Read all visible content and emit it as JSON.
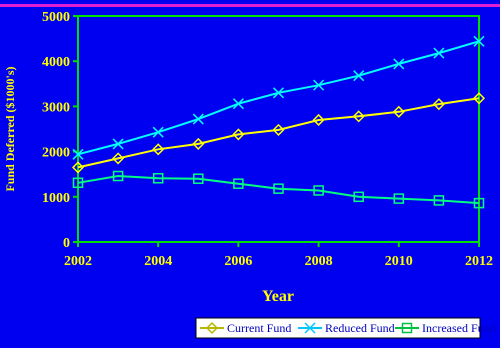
{
  "colors": {
    "background": "#0000f0",
    "plot_border": "#00e000",
    "text": "#ffff00",
    "accent_rule": "#e020d0",
    "legend_bg": "#ffffff",
    "legend_text": "#0000c0"
  },
  "chart_data": {
    "type": "line",
    "title": "",
    "xlabel": "Year",
    "ylabel": "Fund Deferred ($1000's)",
    "xlim": [
      2002,
      2012
    ],
    "ylim": [
      0,
      5000
    ],
    "x_ticks": [
      "2002",
      "2004",
      "2006",
      "2008",
      "2010",
      "2012"
    ],
    "y_ticks": [
      "0",
      "1000",
      "2000",
      "3000",
      "4000",
      "5000"
    ],
    "grid": false,
    "legend_position": "bottom-right",
    "x": [
      2002,
      2003,
      2004,
      2005,
      2006,
      2007,
      2008,
      2009,
      2010,
      2011,
      2012
    ],
    "series": [
      {
        "name": "Current Fund",
        "color": "#ffff00",
        "marker": "diamond",
        "values": [
          1650,
          1850,
          2050,
          2170,
          2380,
          2480,
          2700,
          2780,
          2880,
          3050,
          3180
        ]
      },
      {
        "name": "Reduced Fund",
        "color": "#00ffff",
        "marker": "x",
        "values": [
          1940,
          2170,
          2430,
          2720,
          3060,
          3300,
          3470,
          3680,
          3940,
          4180,
          4440
        ]
      },
      {
        "name": "Increased Fund",
        "color": "#00ff80",
        "marker": "square",
        "values": [
          1310,
          1460,
          1410,
          1400,
          1290,
          1180,
          1140,
          1000,
          960,
          920,
          860
        ]
      }
    ]
  }
}
